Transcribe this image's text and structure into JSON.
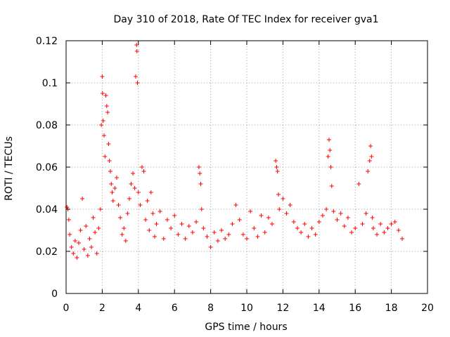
{
  "chart_data": {
    "type": "scatter",
    "title": "Day 310 of 2018, Rate Of TEC Index for receiver gva1",
    "xlabel": "GPS time / hours",
    "ylabel": "ROTI / TECUs",
    "xlim": [
      0,
      20
    ],
    "ylim": [
      0,
      0.12
    ],
    "x_ticks": [
      0,
      2,
      4,
      6,
      8,
      10,
      12,
      14,
      16,
      18,
      20
    ],
    "x_tick_labels": [
      "0",
      "2",
      "4",
      "6",
      "8",
      "10",
      "12",
      "14",
      "16",
      "18",
      "20"
    ],
    "y_ticks": [
      0,
      0.02,
      0.04,
      0.06,
      0.08,
      0.1,
      0.12
    ],
    "y_tick_labels": [
      "0",
      "0.02",
      "0.04",
      "0.06",
      "0.08",
      "0.1",
      "0.12"
    ],
    "grid": true,
    "marker": "+",
    "marker_color": "#ff0000",
    "series": [
      {
        "name": "ROTI",
        "color": "#ff0000",
        "points": [
          [
            0.05,
            0.041
          ],
          [
            0.1,
            0.04
          ],
          [
            0.15,
            0.035
          ],
          [
            0.2,
            0.028
          ],
          [
            0.3,
            0.022
          ],
          [
            0.4,
            0.019
          ],
          [
            0.5,
            0.025
          ],
          [
            0.6,
            0.017
          ],
          [
            0.7,
            0.024
          ],
          [
            0.8,
            0.03
          ],
          [
            0.9,
            0.045
          ],
          [
            1.0,
            0.021
          ],
          [
            1.1,
            0.032
          ],
          [
            1.2,
            0.018
          ],
          [
            1.3,
            0.026
          ],
          [
            1.4,
            0.022
          ],
          [
            1.5,
            0.036
          ],
          [
            1.6,
            0.029
          ],
          [
            1.7,
            0.019
          ],
          [
            1.8,
            0.031
          ],
          [
            1.9,
            0.04
          ],
          [
            1.95,
            0.08
          ],
          [
            2.0,
            0.103
          ],
          [
            2.02,
            0.095
          ],
          [
            2.05,
            0.082
          ],
          [
            2.1,
            0.075
          ],
          [
            2.15,
            0.065
          ],
          [
            2.2,
            0.094
          ],
          [
            2.25,
            0.089
          ],
          [
            2.3,
            0.086
          ],
          [
            2.35,
            0.071
          ],
          [
            2.4,
            0.063
          ],
          [
            2.45,
            0.058
          ],
          [
            2.5,
            0.052
          ],
          [
            2.55,
            0.048
          ],
          [
            2.6,
            0.044
          ],
          [
            2.7,
            0.05
          ],
          [
            2.8,
            0.055
          ],
          [
            2.9,
            0.042
          ],
          [
            3.0,
            0.036
          ],
          [
            3.1,
            0.028
          ],
          [
            3.2,
            0.031
          ],
          [
            3.3,
            0.025
          ],
          [
            3.4,
            0.038
          ],
          [
            3.5,
            0.045
          ],
          [
            3.6,
            0.052
          ],
          [
            3.7,
            0.057
          ],
          [
            3.8,
            0.05
          ],
          [
            3.85,
            0.103
          ],
          [
            3.9,
            0.118
          ],
          [
            3.92,
            0.115
          ],
          [
            3.95,
            0.1
          ],
          [
            4.0,
            0.048
          ],
          [
            4.1,
            0.042
          ],
          [
            4.2,
            0.06
          ],
          [
            4.3,
            0.058
          ],
          [
            4.4,
            0.035
          ],
          [
            4.5,
            0.044
          ],
          [
            4.6,
            0.03
          ],
          [
            4.7,
            0.048
          ],
          [
            4.8,
            0.038
          ],
          [
            4.9,
            0.027
          ],
          [
            5.0,
            0.033
          ],
          [
            5.2,
            0.039
          ],
          [
            5.4,
            0.026
          ],
          [
            5.6,
            0.035
          ],
          [
            5.8,
            0.031
          ],
          [
            6.0,
            0.037
          ],
          [
            6.2,
            0.028
          ],
          [
            6.4,
            0.033
          ],
          [
            6.6,
            0.026
          ],
          [
            6.8,
            0.032
          ],
          [
            7.0,
            0.029
          ],
          [
            7.2,
            0.034
          ],
          [
            7.35,
            0.06
          ],
          [
            7.4,
            0.057
          ],
          [
            7.45,
            0.052
          ],
          [
            7.5,
            0.04
          ],
          [
            7.6,
            0.031
          ],
          [
            7.8,
            0.027
          ],
          [
            8.0,
            0.022
          ],
          [
            8.2,
            0.029
          ],
          [
            8.4,
            0.025
          ],
          [
            8.6,
            0.03
          ],
          [
            8.8,
            0.026
          ],
          [
            9.0,
            0.028
          ],
          [
            9.2,
            0.033
          ],
          [
            9.4,
            0.042
          ],
          [
            9.6,
            0.035
          ],
          [
            9.8,
            0.028
          ],
          [
            10.0,
            0.026
          ],
          [
            10.2,
            0.039
          ],
          [
            10.4,
            0.031
          ],
          [
            10.6,
            0.027
          ],
          [
            10.8,
            0.037
          ],
          [
            11.0,
            0.029
          ],
          [
            11.2,
            0.036
          ],
          [
            11.4,
            0.033
          ],
          [
            11.6,
            0.063
          ],
          [
            11.65,
            0.06
          ],
          [
            11.7,
            0.058
          ],
          [
            11.75,
            0.047
          ],
          [
            11.8,
            0.04
          ],
          [
            12.0,
            0.045
          ],
          [
            12.2,
            0.038
          ],
          [
            12.4,
            0.042
          ],
          [
            12.6,
            0.034
          ],
          [
            12.8,
            0.031
          ],
          [
            13.0,
            0.029
          ],
          [
            13.2,
            0.033
          ],
          [
            13.4,
            0.027
          ],
          [
            13.6,
            0.031
          ],
          [
            13.8,
            0.028
          ],
          [
            14.0,
            0.034
          ],
          [
            14.2,
            0.037
          ],
          [
            14.4,
            0.04
          ],
          [
            14.5,
            0.065
          ],
          [
            14.55,
            0.073
          ],
          [
            14.6,
            0.068
          ],
          [
            14.65,
            0.06
          ],
          [
            14.7,
            0.051
          ],
          [
            14.8,
            0.039
          ],
          [
            15.0,
            0.035
          ],
          [
            15.2,
            0.038
          ],
          [
            15.4,
            0.032
          ],
          [
            15.6,
            0.036
          ],
          [
            15.8,
            0.029
          ],
          [
            16.0,
            0.031
          ],
          [
            16.2,
            0.052
          ],
          [
            16.4,
            0.033
          ],
          [
            16.6,
            0.038
          ],
          [
            16.7,
            0.058
          ],
          [
            16.8,
            0.063
          ],
          [
            16.85,
            0.07
          ],
          [
            16.9,
            0.065
          ],
          [
            16.95,
            0.036
          ],
          [
            17.0,
            0.031
          ],
          [
            17.2,
            0.028
          ],
          [
            17.4,
            0.033
          ],
          [
            17.6,
            0.029
          ],
          [
            17.8,
            0.031
          ],
          [
            18.0,
            0.033
          ],
          [
            18.2,
            0.034
          ],
          [
            18.4,
            0.03
          ],
          [
            18.6,
            0.026
          ]
        ]
      }
    ]
  }
}
